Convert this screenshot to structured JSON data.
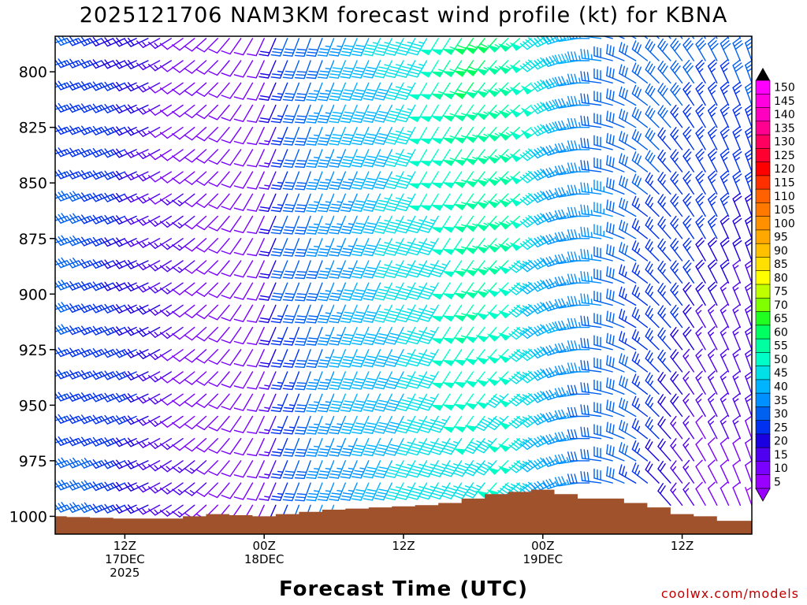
{
  "title": "2025121706 NAM3KM forecast wind profile (kt) for KBNA",
  "x_axis_title": "Forecast Time (UTC)",
  "credit": "coolwx.com/models",
  "chart_data": {
    "type": "wind-barb time-height",
    "y_scale": "pressure (hPa), inverted",
    "y_ticks": [
      800,
      825,
      850,
      875,
      900,
      925,
      950,
      975,
      1000
    ],
    "ylim": [
      1008,
      784
    ],
    "x_ticks": [
      {
        "hour": 6,
        "lines": [
          "12Z",
          "17DEC",
          "2025"
        ]
      },
      {
        "hour": 18,
        "lines": [
          "00Z",
          "18DEC"
        ]
      },
      {
        "hour": 30,
        "lines": [
          "12Z"
        ]
      },
      {
        "hour": 42,
        "lines": [
          "00Z",
          "19DEC"
        ]
      },
      {
        "hour": 54,
        "lines": [
          "12Z"
        ]
      }
    ],
    "xlim_hours": [
      0,
      60
    ],
    "x_step_hours": 1,
    "levels_hpa": [
      785,
      795,
      805,
      815,
      825,
      835,
      845,
      855,
      865,
      875,
      885,
      895,
      905,
      915,
      925,
      935,
      945,
      955,
      965,
      975,
      985,
      995
    ],
    "surface_pressure_hpa": {
      "hours": [
        0,
        6,
        10,
        12,
        14,
        18,
        20,
        24,
        28,
        32,
        34,
        36,
        38,
        40,
        42,
        44,
        46,
        48,
        52,
        54,
        56,
        58,
        60
      ],
      "values": [
        1000,
        1001,
        1001,
        1000,
        999,
        1000,
        999,
        997,
        996,
        995,
        994,
        992,
        990,
        989,
        988,
        990,
        992,
        992,
        996,
        999,
        1000,
        1002,
        1002
      ]
    },
    "wind_speed_kt_by_hour": {
      "hours": [
        0,
        6,
        10,
        14,
        18,
        20,
        24,
        28,
        34,
        36,
        40,
        44,
        48,
        52,
        56,
        60
      ],
      "speed_upper": [
        30,
        22,
        12,
        10,
        10,
        28,
        35,
        42,
        52,
        58,
        57,
        38,
        32,
        30,
        30,
        30
      ],
      "speed_lower": [
        30,
        25,
        15,
        10,
        10,
        25,
        35,
        40,
        45,
        48,
        45,
        35,
        30,
        22,
        10,
        8
      ]
    },
    "wind_direction_deg_by_hour": {
      "hours": [
        0,
        8,
        14,
        18,
        22,
        28,
        36,
        42,
        46,
        52,
        56,
        60
      ],
      "direction": [
        250,
        245,
        225,
        205,
        200,
        205,
        215,
        235,
        270,
        315,
        330,
        340
      ]
    },
    "colorbar": {
      "min": 5,
      "max": 150,
      "step": 5,
      "labels": [
        150,
        145,
        140,
        135,
        130,
        125,
        120,
        115,
        110,
        105,
        100,
        95,
        90,
        85,
        80,
        75,
        70,
        65,
        60,
        55,
        50,
        45,
        40,
        35,
        30,
        25,
        20,
        15,
        10,
        5
      ],
      "colors": {
        "5": "#9a00ff",
        "10": "#7a00ff",
        "15": "#5000f0",
        "20": "#1a00e0",
        "25": "#0030f0",
        "30": "#0060f0",
        "35": "#0090ff",
        "40": "#00b4ff",
        "45": "#00e0e6",
        "50": "#00ffc8",
        "55": "#00ffa0",
        "60": "#00ff60",
        "65": "#20ff20",
        "70": "#80ff00",
        "75": "#c0ff00",
        "80": "#ffff00",
        "85": "#ffe000",
        "90": "#ffc000",
        "95": "#ffa800",
        "100": "#ff9000",
        "105": "#ff7800",
        "110": "#ff6000",
        "115": "#ff3000",
        "120": "#ff0000",
        "125": "#ff0030",
        "130": "#ff0060",
        "135": "#ff0090",
        "140": "#ff00c0",
        "145": "#ff00e0",
        "150": "#ff00ff"
      }
    },
    "ground_color": "#a0522d"
  }
}
